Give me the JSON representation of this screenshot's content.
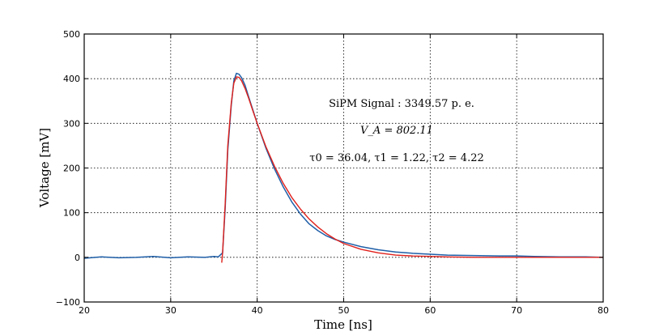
{
  "chart_data": {
    "type": "line",
    "title": "",
    "xlabel": "Time [ns]",
    "ylabel": "Voltage [mV]",
    "xlim": [
      20,
      80
    ],
    "ylim": [
      -100,
      500
    ],
    "xticks": [
      20,
      30,
      40,
      50,
      60,
      70,
      80
    ],
    "yticks": [
      -100,
      0,
      100,
      200,
      300,
      400,
      500
    ],
    "grid": true,
    "annotations": [
      "SiPM Signal : 3349.57 p. e.",
      "V_A = 802.11",
      "τ0 = 36.04,  τ1 = 1.22,  τ2 = 4.22"
    ],
    "series": [
      {
        "color": "#1f5fa8",
        "x": [
          20,
          22,
          24,
          26,
          28,
          30,
          32,
          34,
          35,
          35.5,
          36,
          36.3,
          36.6,
          37,
          37.3,
          37.6,
          37.9,
          38.2,
          38.6,
          39,
          39.5,
          40,
          41,
          42,
          43,
          44,
          45,
          46,
          47,
          48,
          49,
          50,
          52,
          54,
          56,
          58,
          60,
          62,
          65,
          68,
          70,
          72,
          75,
          78,
          80
        ],
        "values": [
          -2,
          1,
          -1,
          0,
          2,
          -1,
          1,
          0,
          2,
          1,
          10,
          110,
          240,
          340,
          395,
          412,
          410,
          402,
          385,
          360,
          330,
          300,
          245,
          198,
          158,
          124,
          97,
          75,
          60,
          48,
          40,
          34,
          24,
          17,
          12,
          9,
          7,
          5,
          4,
          3,
          3,
          2,
          1,
          1,
          0
        ]
      },
      {
        "color": "#e0201b",
        "x": [
          35.9,
          36,
          36.3,
          36.6,
          37,
          37.3,
          37.6,
          37.9,
          38.2,
          38.6,
          39,
          39.5,
          40,
          41,
          42,
          43,
          44,
          45,
          46,
          47,
          48,
          49,
          50,
          52,
          54,
          56,
          58,
          60,
          62,
          65,
          68,
          70,
          72,
          75,
          78,
          80
        ],
        "values": [
          -12,
          10,
          120,
          250,
          345,
          390,
          404,
          403,
          395,
          378,
          357,
          328,
          300,
          248,
          204,
          166,
          134,
          108,
          86,
          68,
          53,
          41,
          31,
          18,
          10,
          5,
          3,
          2,
          1,
          0,
          0,
          0,
          0,
          0,
          0,
          0
        ]
      }
    ]
  }
}
